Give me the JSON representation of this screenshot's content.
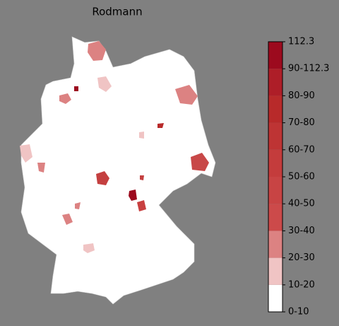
{
  "title": "Rodmann",
  "legend": {
    "labels": [
      "0-10",
      "10-20",
      "20-30",
      "30-40",
      "40-50",
      "50-60",
      "60-70",
      "70-80",
      "80-90",
      "90-112.3",
      "112.3"
    ],
    "colors": [
      "#ffffff",
      "#f0c4c4",
      "#dc8282",
      "#cc4a4a",
      "#c84444",
      "#c43c3c",
      "#be3434",
      "#b82a2a",
      "#ae1e28",
      "#9c0a1e"
    ]
  }
}
